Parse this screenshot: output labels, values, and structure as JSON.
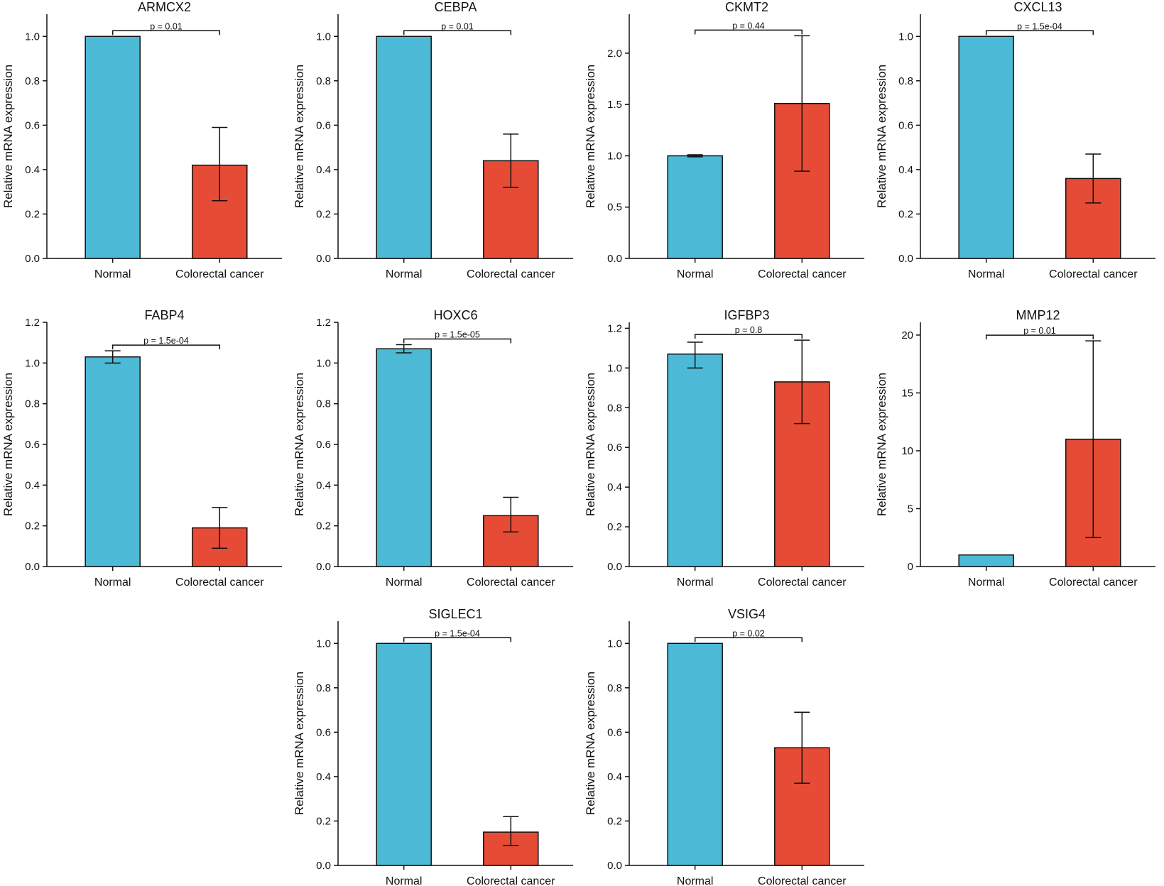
{
  "colors": {
    "normal": "#4cbad6",
    "cancer": "#e64b35",
    "axis": "#111111"
  },
  "chart_data": [
    {
      "type": "bar",
      "title": "ARMCX2",
      "categories": [
        "Normal",
        "Colorectal cancer"
      ],
      "ylabel": "Relative mRNA expression",
      "values": [
        1.0,
        0.42
      ],
      "err_low": [
        1.0,
        0.26
      ],
      "err_high": [
        1.0,
        0.59
      ],
      "p_label": "p = 0.01",
      "ylim": [
        0,
        1.1
      ],
      "ticks": [
        "0.0",
        "0.2",
        "0.4",
        "0.6",
        "0.8",
        "1.0"
      ],
      "tick_values": [
        0,
        0.2,
        0.4,
        0.6,
        0.8,
        1.0
      ]
    },
    {
      "type": "bar",
      "title": "CEBPA",
      "categories": [
        "Normal",
        "Colorectal cancer"
      ],
      "ylabel": "Relative mRNA expression",
      "values": [
        1.0,
        0.44
      ],
      "err_low": [
        1.0,
        0.32
      ],
      "err_high": [
        1.0,
        0.56
      ],
      "p_label": "p = 0.01",
      "ylim": [
        0,
        1.1
      ],
      "ticks": [
        "0.0",
        "0.2",
        "0.4",
        "0.6",
        "0.8",
        "1.0"
      ],
      "tick_values": [
        0,
        0.2,
        0.4,
        0.6,
        0.8,
        1.0
      ]
    },
    {
      "type": "bar",
      "title": "CKMT2",
      "categories": [
        "Normal",
        "Colorectal cancer"
      ],
      "ylabel": "Relative mRNA expression",
      "values": [
        1.0,
        1.51
      ],
      "err_low": [
        0.99,
        0.85
      ],
      "err_high": [
        1.01,
        2.17
      ],
      "p_label": "p = 0.44",
      "ylim": [
        0,
        2.38
      ],
      "ticks": [
        "0.0",
        "0.5",
        "1.0",
        "1.5",
        "2.0"
      ],
      "tick_values": [
        0,
        0.5,
        1.0,
        1.5,
        2.0
      ]
    },
    {
      "type": "bar",
      "title": "CXCL13",
      "categories": [
        "Normal",
        "Colorectal cancer"
      ],
      "ylabel": "Relative mRNA expression",
      "values": [
        1.0,
        0.36
      ],
      "err_low": [
        1.0,
        0.25
      ],
      "err_high": [
        1.0,
        0.47
      ],
      "p_label": "p = 1.5e-04",
      "ylim": [
        0,
        1.1
      ],
      "ticks": [
        "0.0",
        "0.2",
        "0.4",
        "0.6",
        "0.8",
        "1.0"
      ],
      "tick_values": [
        0,
        0.2,
        0.4,
        0.6,
        0.8,
        1.0
      ]
    },
    {
      "type": "bar",
      "title": "FABP4",
      "categories": [
        "Normal",
        "Colorectal cancer"
      ],
      "ylabel": "Relative mRNA expression",
      "values": [
        1.03,
        0.19
      ],
      "err_low": [
        1.0,
        0.09
      ],
      "err_high": [
        1.06,
        0.29
      ],
      "p_label": "p = 1.5e-04",
      "ylim": [
        0,
        1.2
      ],
      "ticks": [
        "0.0",
        "0.2",
        "0.4",
        "0.6",
        "0.8",
        "1.0",
        "1.2"
      ],
      "tick_values": [
        0,
        0.2,
        0.4,
        0.6,
        0.8,
        1.0,
        1.2
      ]
    },
    {
      "type": "bar",
      "title": "HOXC6",
      "categories": [
        "Normal",
        "Colorectal cancer"
      ],
      "ylabel": "Relative mRNA expression",
      "values": [
        1.07,
        0.25
      ],
      "err_low": [
        1.05,
        0.17
      ],
      "err_high": [
        1.09,
        0.34
      ],
      "p_label": "p = 1.5e-05",
      "ylim": [
        0,
        1.2
      ],
      "ticks": [
        "0.0",
        "0.2",
        "0.4",
        "0.6",
        "0.8",
        "1.0",
        "1.2"
      ],
      "tick_values": [
        0,
        0.2,
        0.4,
        0.6,
        0.8,
        1.0,
        1.2
      ]
    },
    {
      "type": "bar",
      "title": "IGFBP3",
      "categories": [
        "Normal",
        "Colorectal cancer"
      ],
      "ylabel": "Relative mRNA expression",
      "values": [
        1.07,
        0.93
      ],
      "err_low": [
        1.0,
        0.72
      ],
      "err_high": [
        1.13,
        1.14
      ],
      "p_label": "p = 0.8",
      "ylim": [
        0,
        1.23
      ],
      "ticks": [
        "0.0",
        "0.2",
        "0.4",
        "0.6",
        "0.8",
        "1.0",
        "1.2"
      ],
      "tick_values": [
        0,
        0.2,
        0.4,
        0.6,
        0.8,
        1.0,
        1.2
      ]
    },
    {
      "type": "bar",
      "title": "MMP12",
      "categories": [
        "Normal",
        "Colorectal cancer"
      ],
      "ylabel": "Relative mRNA expression",
      "values": [
        1.0,
        11.0
      ],
      "err_low": [
        1.0,
        2.5
      ],
      "err_high": [
        1.0,
        19.5
      ],
      "p_label": "p = 0.01",
      "ylim": [
        0,
        21.1
      ],
      "ticks": [
        "0",
        "5",
        "10",
        "15",
        "20"
      ],
      "tick_values": [
        0,
        5,
        10,
        15,
        20
      ]
    },
    {
      "type": "bar",
      "title": "SIGLEC1",
      "categories": [
        "Normal",
        "Colorectal cancer"
      ],
      "ylabel": "Relative mRNA expression",
      "values": [
        1.0,
        0.15
      ],
      "err_low": [
        1.0,
        0.09
      ],
      "err_high": [
        1.0,
        0.22
      ],
      "p_label": "p = 1.5e-04",
      "ylim": [
        0,
        1.1
      ],
      "ticks": [
        "0.0",
        "0.2",
        "0.4",
        "0.6",
        "0.8",
        "1.0"
      ],
      "tick_values": [
        0,
        0.2,
        0.4,
        0.6,
        0.8,
        1.0
      ]
    },
    {
      "type": "bar",
      "title": "VSIG4",
      "categories": [
        "Normal",
        "Colorectal cancer"
      ],
      "ylabel": "Relative mRNA expression",
      "values": [
        1.0,
        0.53
      ],
      "err_low": [
        1.0,
        0.37
      ],
      "err_high": [
        1.0,
        0.69
      ],
      "p_label": "p = 0.02",
      "ylim": [
        0,
        1.1
      ],
      "ticks": [
        "0.0",
        "0.2",
        "0.4",
        "0.6",
        "0.8",
        "1.0"
      ],
      "tick_values": [
        0,
        0.2,
        0.4,
        0.6,
        0.8,
        1.0
      ]
    }
  ]
}
